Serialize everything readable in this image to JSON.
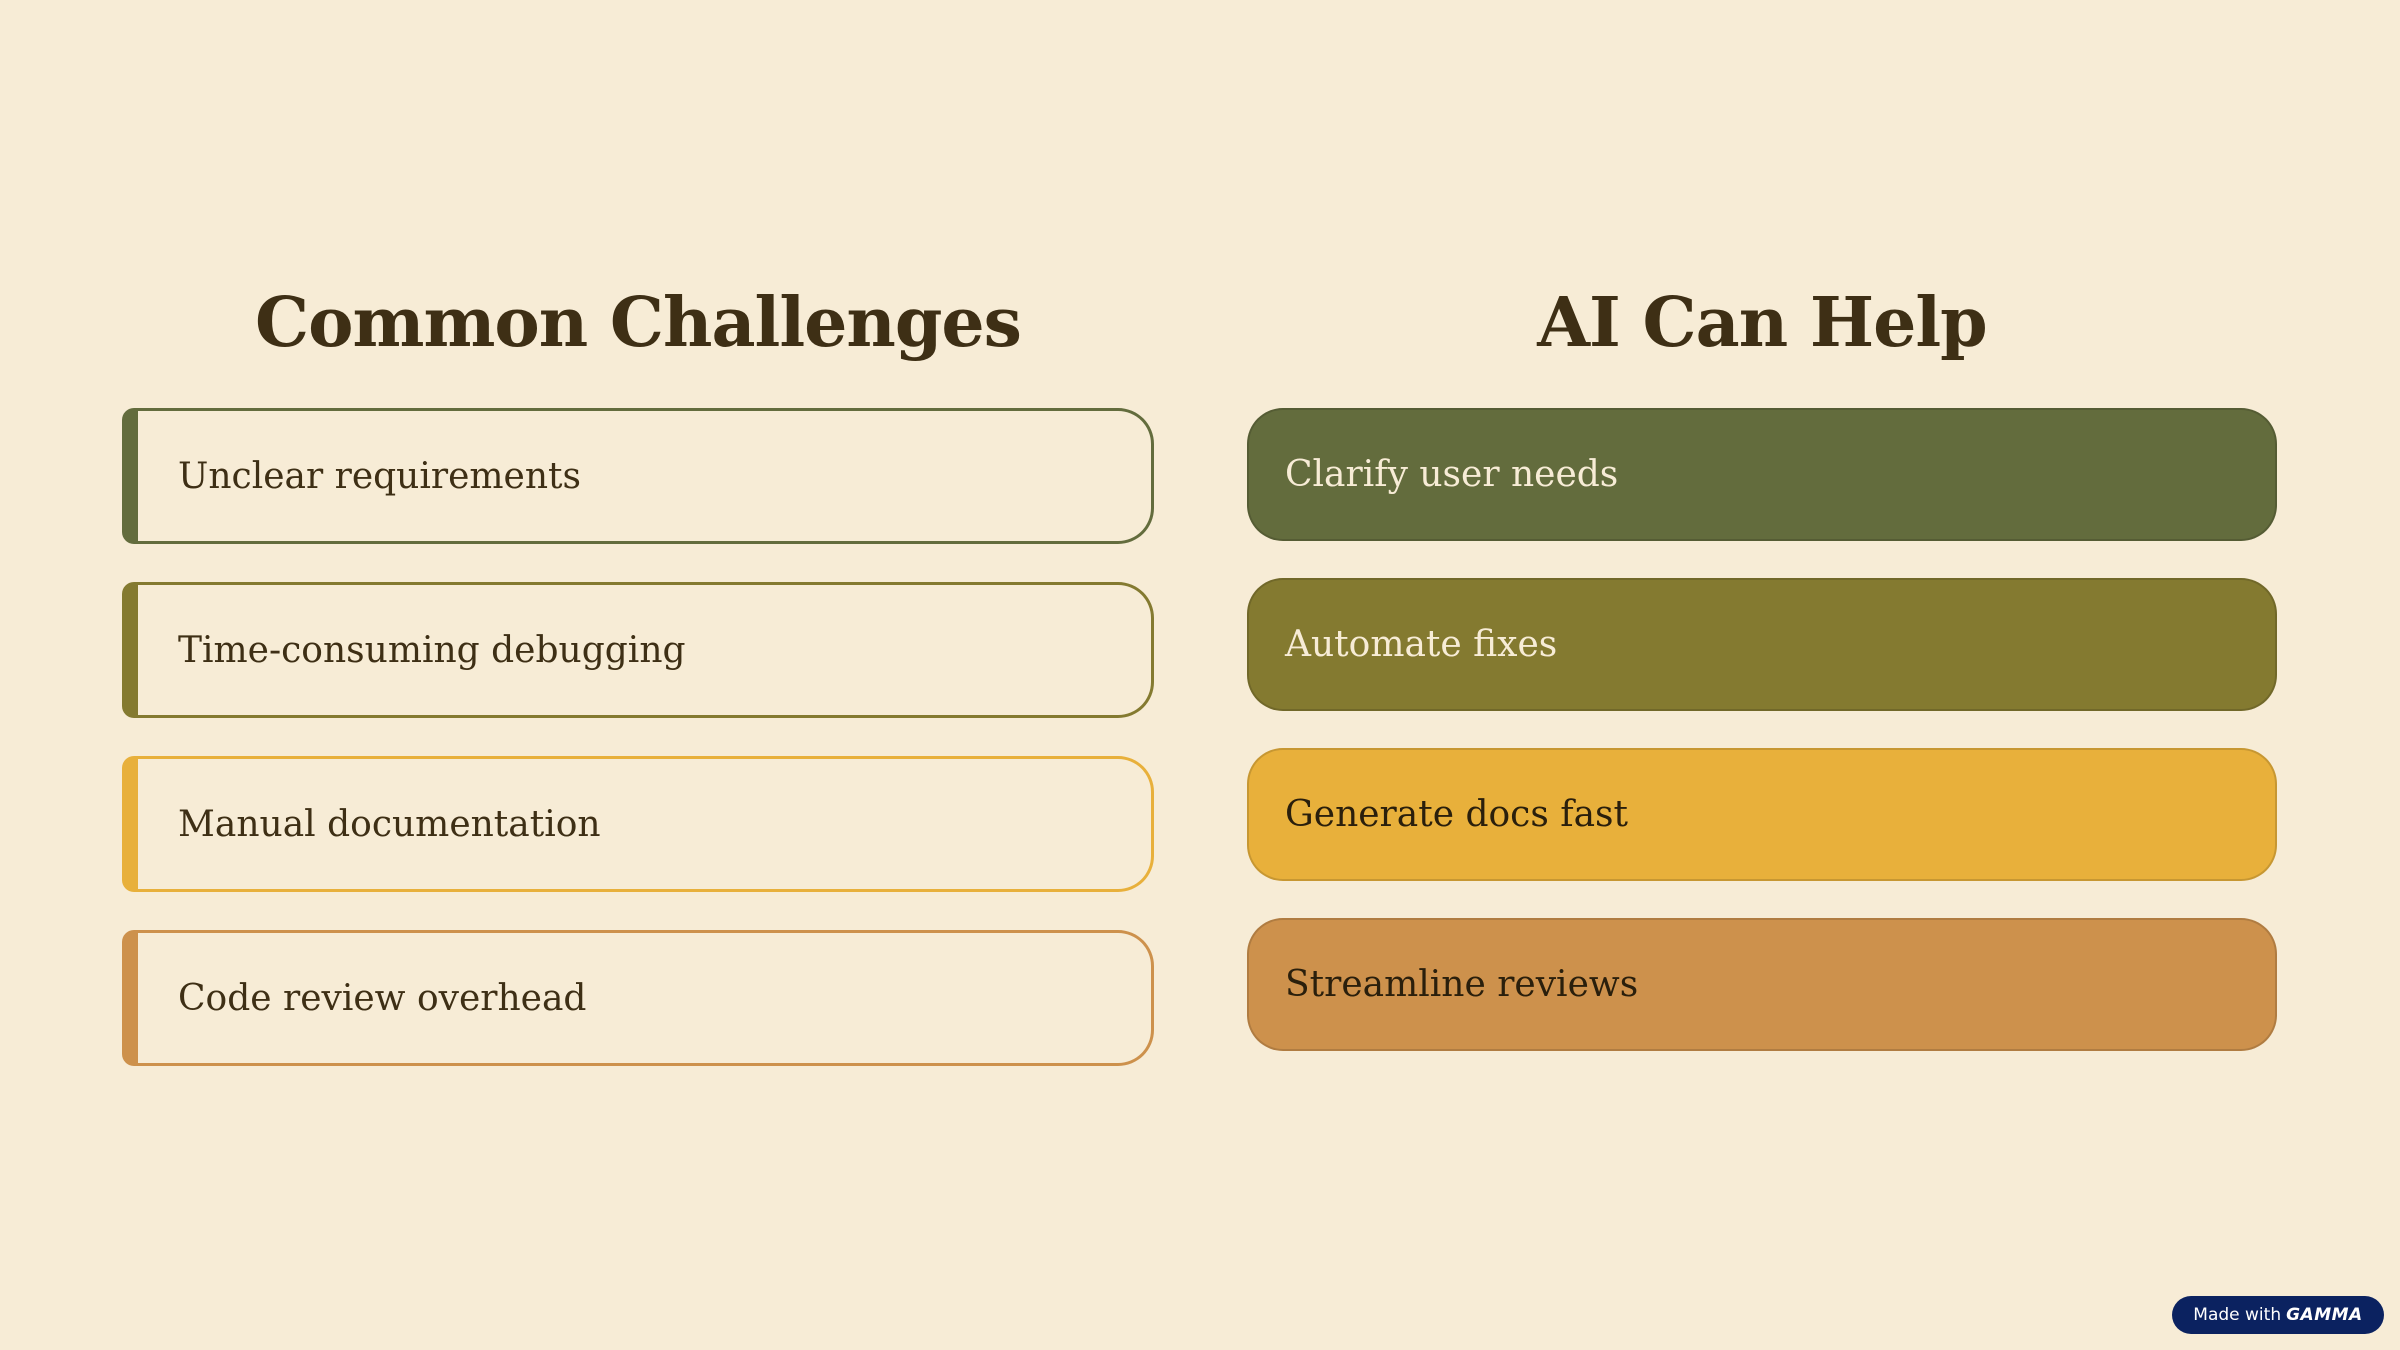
{
  "colors": {
    "background": "#f7ecd6",
    "heading_text": "#3e2f15",
    "olive_dark": "#636c3d",
    "olive": "#847a30",
    "gold": "#e8b03b",
    "tan": "#cd914c",
    "badge_bg": "#0b2260"
  },
  "left_column": {
    "title": "Common Challenges",
    "items": [
      {
        "label": "Unclear requirements",
        "color": "#636c3d"
      },
      {
        "label": "Time-consuming debugging",
        "color": "#847a30"
      },
      {
        "label": "Manual documentation",
        "color": "#e8b03b"
      },
      {
        "label": "Code review overhead",
        "color": "#cd914c"
      }
    ]
  },
  "right_column": {
    "title": "AI Can Help",
    "items": [
      {
        "label": "Clarify user needs",
        "color": "#636c3d",
        "text_color": "#f7ecd6"
      },
      {
        "label": "Automate fixes",
        "color": "#847a30",
        "text_color": "#f7ecd6"
      },
      {
        "label": "Generate docs fast",
        "color": "#e8b03b",
        "text_color": "#2a1f0c"
      },
      {
        "label": "Streamline reviews",
        "color": "#cd914c",
        "text_color": "#2a1f0c"
      }
    ]
  },
  "badge": {
    "prefix": "Made with",
    "brand": "GAMMA"
  }
}
